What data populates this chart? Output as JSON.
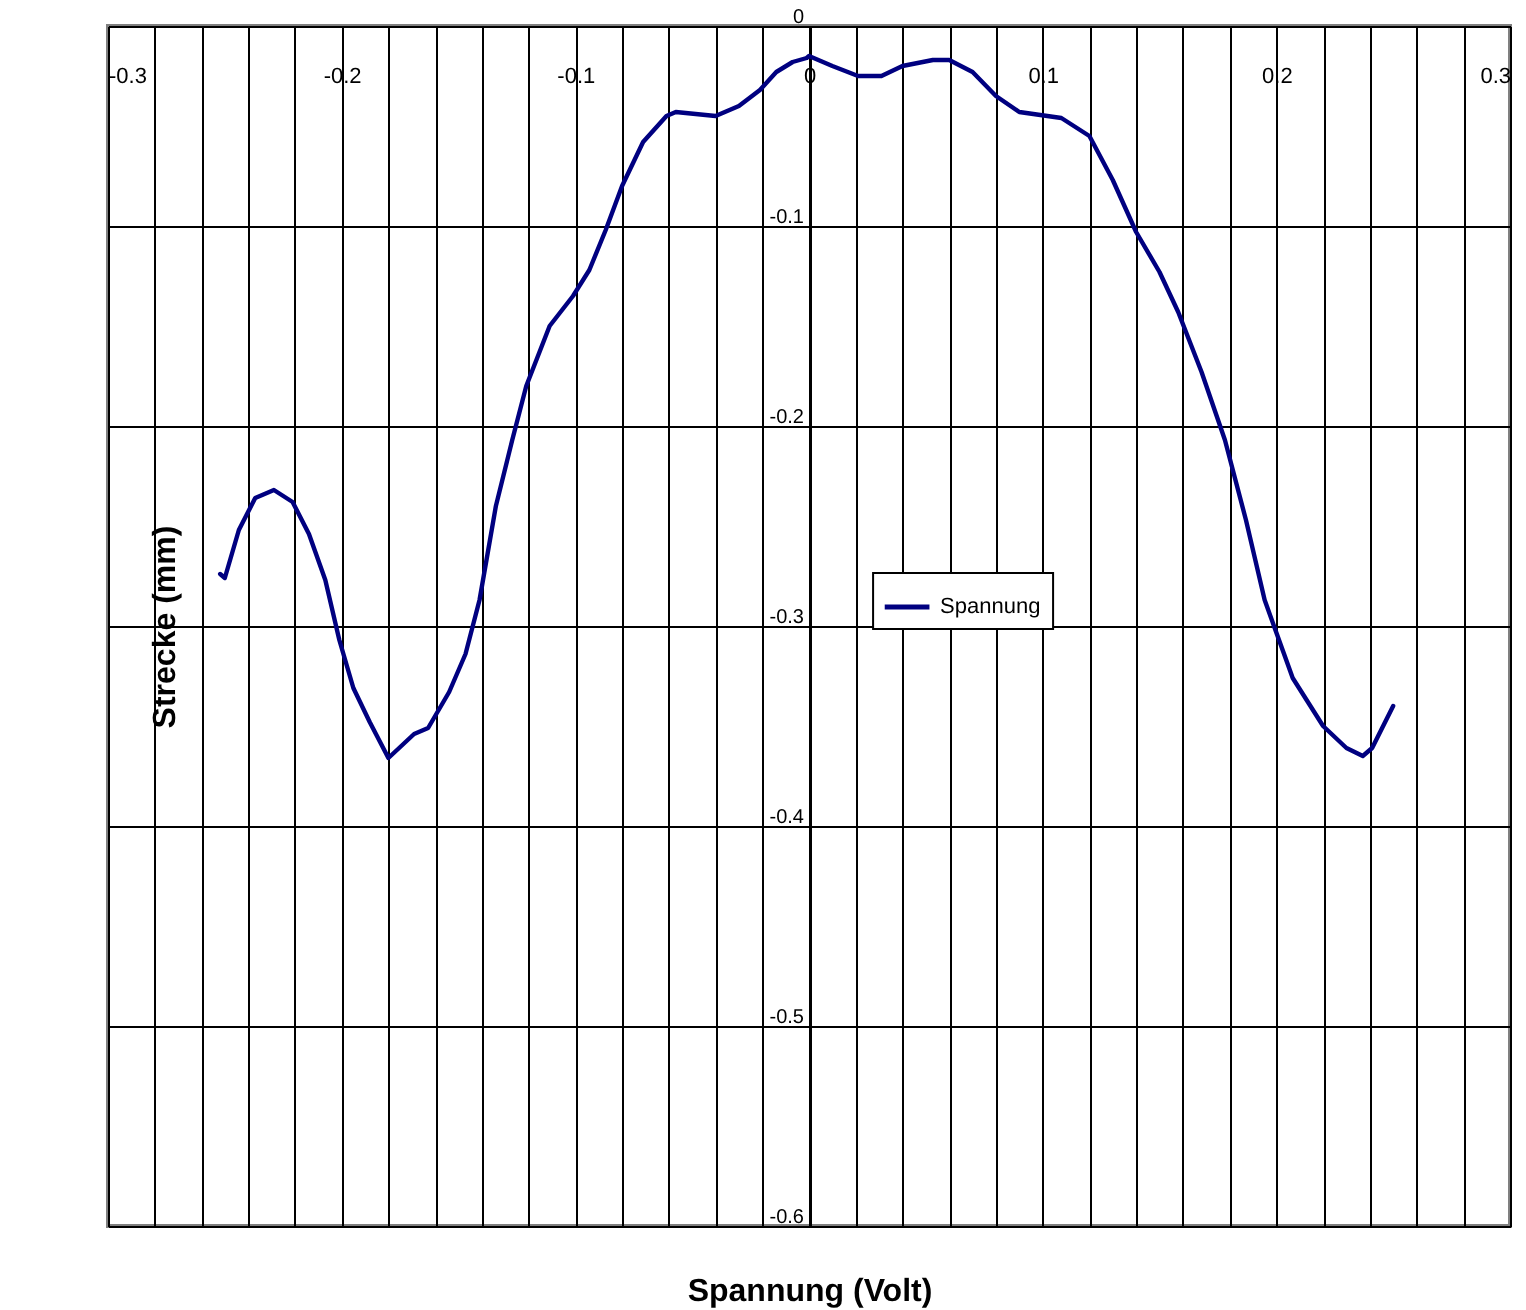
{
  "chart_data": {
    "type": "line",
    "xlabel": "Spannung (Volt)",
    "ylabel": "Strecke (mm)",
    "x": [
      -0.252,
      -0.25,
      -0.244,
      -0.237,
      -0.229,
      -0.221,
      -0.214,
      -0.207,
      -0.201,
      -0.195,
      -0.188,
      -0.18,
      -0.169,
      -0.163,
      -0.154,
      -0.147,
      -0.141,
      -0.134,
      -0.127,
      -0.121,
      -0.111,
      -0.101,
      -0.094,
      -0.087,
      -0.08,
      -0.071,
      -0.061,
      -0.057,
      -0.04,
      -0.03,
      -0.021,
      -0.014,
      -0.007,
      -0.001,
      0.0,
      0.01,
      0.021,
      0.031,
      0.04,
      0.053,
      0.06,
      0.07,
      0.08,
      0.09,
      0.108,
      0.12,
      0.13,
      0.14,
      0.15,
      0.158,
      0.168,
      0.178,
      0.187,
      0.195,
      0.203,
      0.207,
      0.22,
      0.23,
      0.237,
      0.241,
      0.25
    ],
    "series": [
      {
        "name": "Spannung",
        "color": "#000080",
        "values": [
          -0.274,
          -0.276,
          -0.252,
          -0.236,
          -0.232,
          -0.238,
          -0.254,
          -0.277,
          -0.307,
          -0.331,
          -0.348,
          -0.366,
          -0.354,
          -0.351,
          -0.333,
          -0.314,
          -0.287,
          -0.24,
          -0.207,
          -0.18,
          -0.15,
          -0.135,
          -0.122,
          -0.102,
          -0.08,
          -0.058,
          -0.045,
          -0.043,
          -0.045,
          -0.04,
          -0.032,
          -0.023,
          -0.018,
          -0.016,
          -0.015,
          -0.02,
          -0.025,
          -0.025,
          -0.02,
          -0.017,
          -0.017,
          -0.023,
          -0.035,
          -0.043,
          -0.046,
          -0.055,
          -0.077,
          -0.103,
          -0.123,
          -0.143,
          -0.173,
          -0.207,
          -0.247,
          -0.287,
          -0.313,
          -0.326,
          -0.35,
          -0.361,
          -0.365,
          -0.361,
          -0.34
        ]
      }
    ],
    "xlim": [
      -0.3,
      0.3
    ],
    "xticks": [
      -0.3,
      {
        "value": -0.28,
        "label": null
      },
      {
        "value": -0.26,
        "label": null
      },
      {
        "value": -0.24,
        "label": null
      },
      {
        "value": -0.22,
        "label": null
      },
      -0.2,
      {
        "value": -0.18,
        "label": null
      },
      {
        "value": -0.16,
        "label": null
      },
      {
        "value": -0.14,
        "label": null
      },
      {
        "value": -0.12,
        "label": null
      },
      -0.1,
      {
        "value": -0.08,
        "label": null
      },
      {
        "value": -0.06,
        "label": null
      },
      {
        "value": -0.04,
        "label": null
      },
      {
        "value": -0.02,
        "label": null
      },
      0,
      {
        "value": 0.02,
        "label": null
      },
      {
        "value": 0.04,
        "label": null
      },
      {
        "value": 0.06,
        "label": null
      },
      {
        "value": 0.08,
        "label": null
      },
      0.1,
      {
        "value": 0.12,
        "label": null
      },
      {
        "value": 0.14,
        "label": null
      },
      {
        "value": 0.16,
        "label": null
      },
      {
        "value": 0.18,
        "label": null
      },
      0.2,
      {
        "value": 0.22,
        "label": null
      },
      {
        "value": 0.24,
        "label": null
      },
      {
        "value": 0.26,
        "label": null
      },
      {
        "value": 0.28,
        "label": null
      },
      0.3
    ],
    "ylim": [
      -0.6,
      0
    ],
    "yticks": [
      0,
      -0.1,
      -0.2,
      -0.3,
      -0.4,
      -0.5,
      -0.6
    ],
    "grid": true,
    "legend": "right"
  }
}
